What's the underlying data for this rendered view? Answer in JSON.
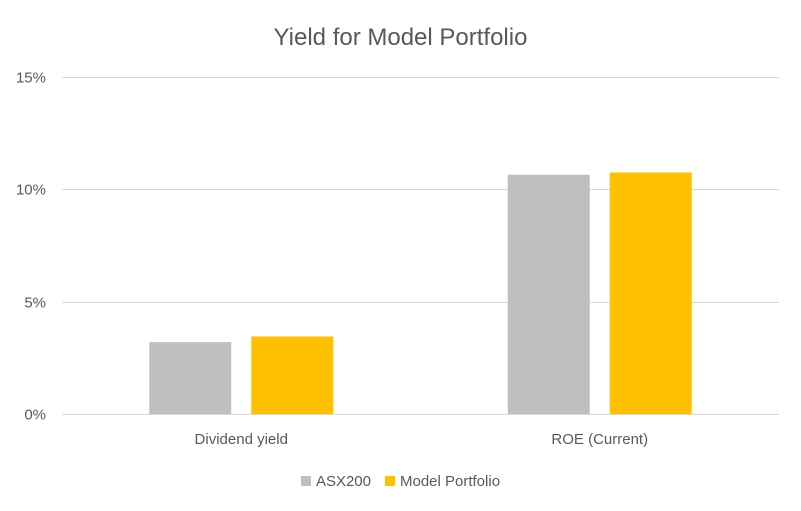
{
  "chart_data": {
    "type": "bar",
    "title": "Yield for Model Portfolio",
    "categories": [
      "Dividend yield",
      "ROE (Current)"
    ],
    "series": [
      {
        "name": "ASX200",
        "values": [
          3.2,
          10.65
        ],
        "color": "#bfbfbf"
      },
      {
        "name": "Model Portfolio",
        "values": [
          3.45,
          10.75
        ],
        "color": "#ffc000"
      }
    ],
    "y_ticks": [
      0,
      5,
      10,
      15
    ],
    "y_tick_labels": [
      "0%",
      "5%",
      "10%",
      "15%"
    ],
    "ylim": [
      0,
      15
    ],
    "xlabel": "",
    "ylabel": "",
    "grid": true,
    "legend_position": "bottom"
  }
}
